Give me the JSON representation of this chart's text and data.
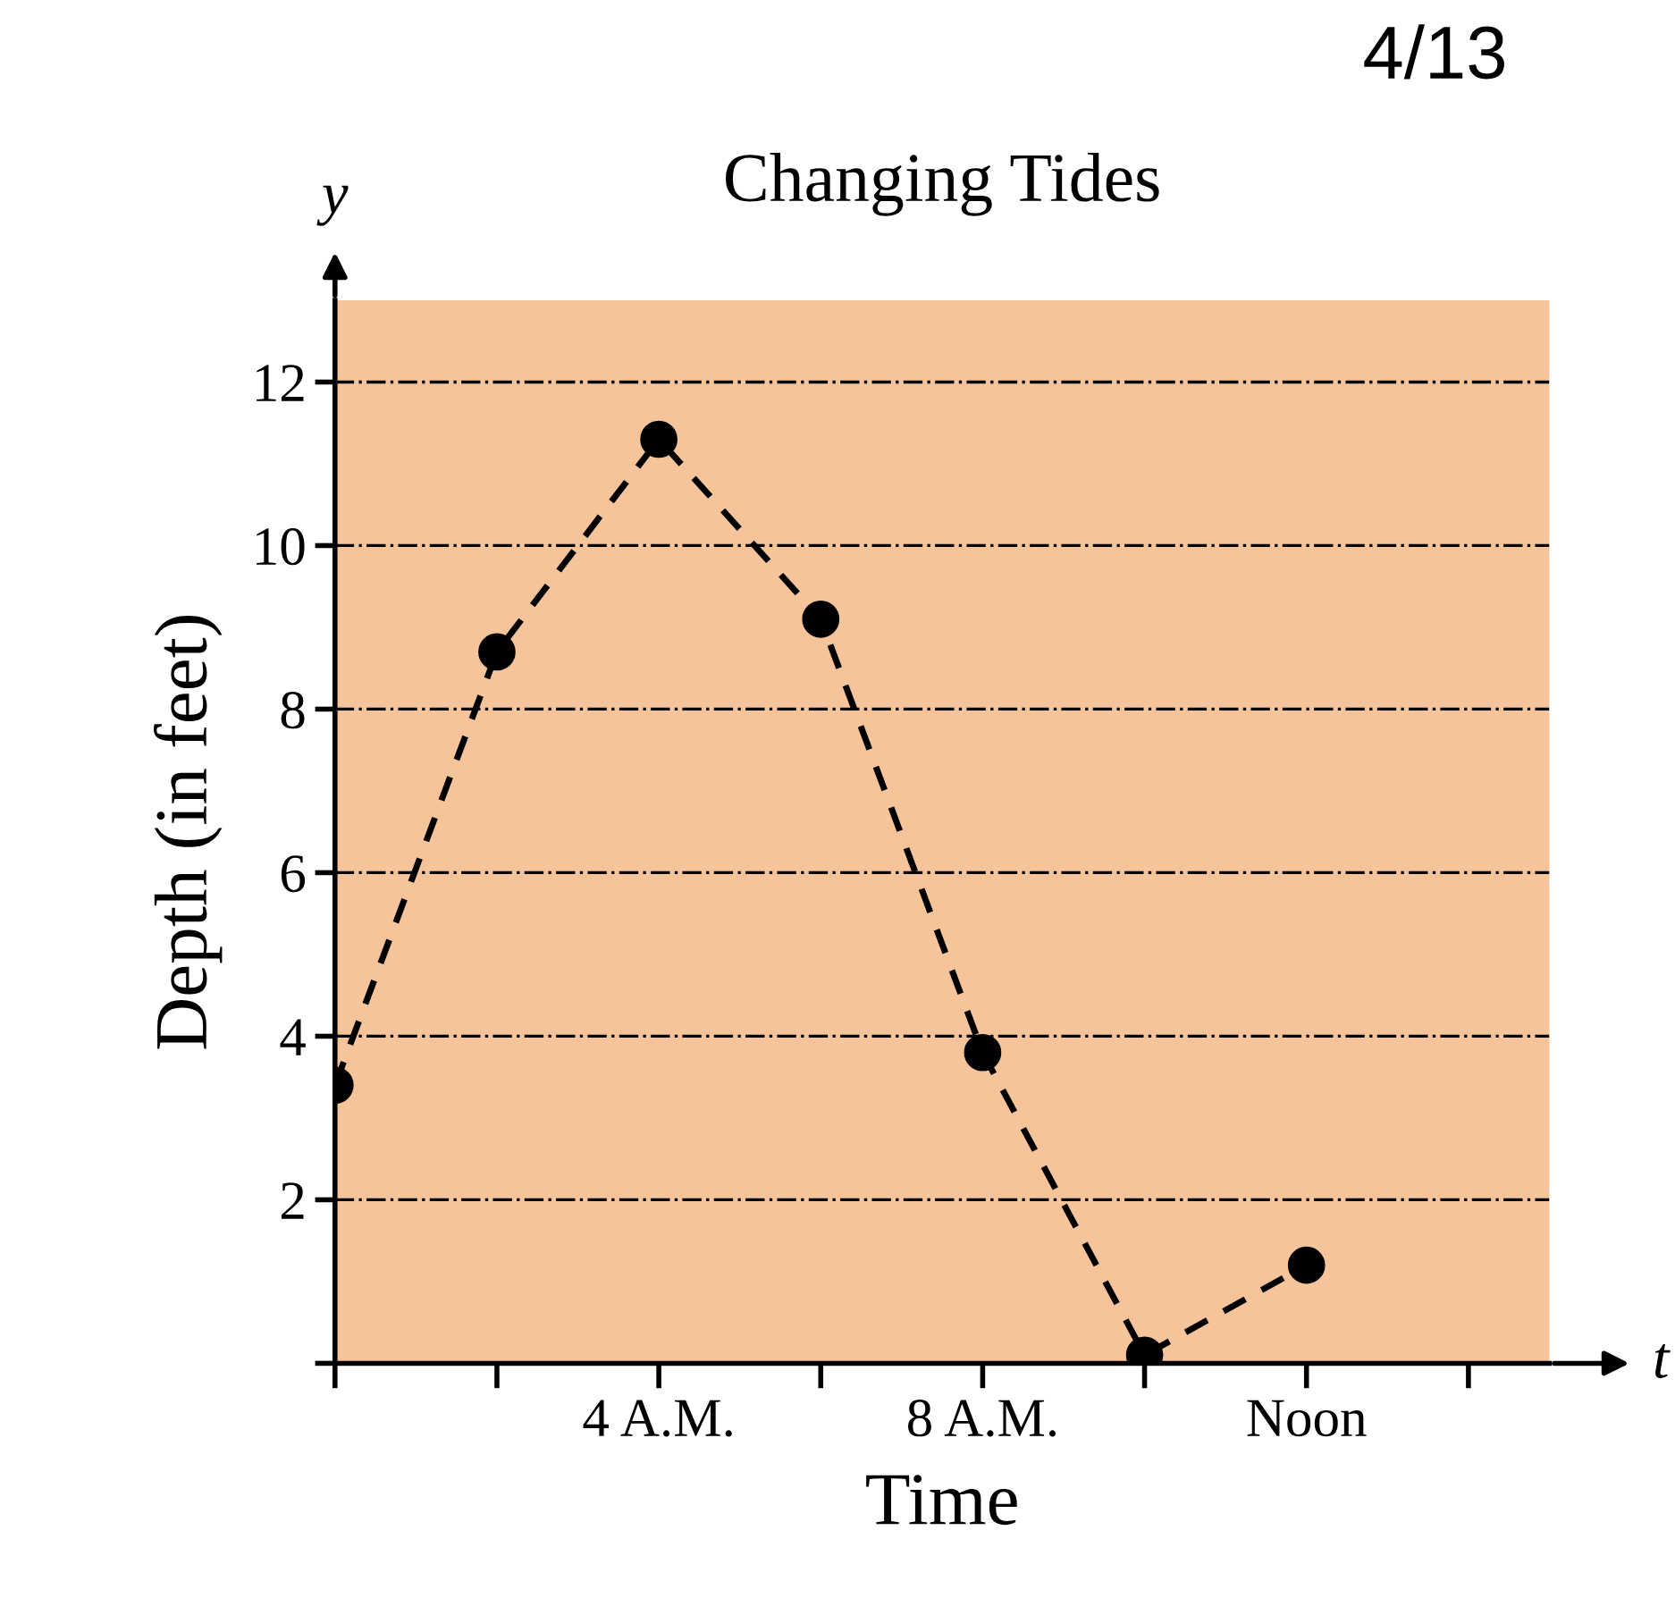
{
  "chart_data": {
    "type": "line",
    "title": "Changing Tides",
    "xlabel": "Time",
    "ylabel": "Depth (in feet)",
    "x": [
      0,
      2,
      4,
      6,
      8,
      10,
      12
    ],
    "series": [
      {
        "color": "#000000",
        "values": [
          3.4,
          8.7,
          11.3,
          9.1,
          3.8,
          0.1,
          1.2
        ]
      }
    ],
    "xlim": [
      0,
      15
    ],
    "ylim": [
      0,
      13
    ],
    "xticks": [
      {
        "value": 0,
        "label": null
      },
      {
        "value": 2,
        "label": null
      },
      {
        "value": 4,
        "label": "4 A.M."
      },
      {
        "value": 6,
        "label": null
      },
      {
        "value": 8,
        "label": "8 A.M."
      },
      {
        "value": 10,
        "label": null
      },
      {
        "value": 12,
        "label": "Noon"
      },
      {
        "value": 14,
        "label": null
      }
    ],
    "yticks": [
      {
        "value": 0,
        "label": null
      },
      2,
      4,
      6,
      8,
      10,
      12
    ],
    "grid": "y",
    "marker": "circle",
    "line_style": "dashed",
    "annotations": [
      "y",
      "t",
      "4/13"
    ]
  }
}
